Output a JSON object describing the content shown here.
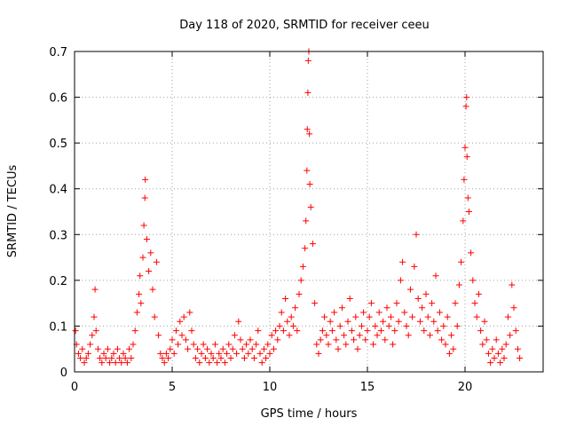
{
  "chart_data": {
    "type": "scatter",
    "title": "Day 118 of 2020, SRMTID for receiver ceeu",
    "xlabel": "GPS time / hours",
    "ylabel": "SRMTID / TECUs",
    "xlim": [
      0,
      24
    ],
    "ylim": [
      0,
      0.7
    ],
    "xticks": [
      0,
      5,
      10,
      15,
      20
    ],
    "yticks": [
      0,
      0.1,
      0.2,
      0.3,
      0.4,
      0.5,
      0.6,
      0.7
    ],
    "grid": true,
    "marker": "+",
    "color": "#ff0000",
    "series": [
      {
        "name": "SRMTID",
        "points": [
          [
            0.05,
            0.09
          ],
          [
            0.1,
            0.06
          ],
          [
            0.2,
            0.04
          ],
          [
            0.3,
            0.03
          ],
          [
            0.4,
            0.05
          ],
          [
            0.5,
            0.02
          ],
          [
            0.6,
            0.03
          ],
          [
            0.7,
            0.04
          ],
          [
            0.8,
            0.06
          ],
          [
            0.9,
            0.08
          ],
          [
            1.0,
            0.12
          ],
          [
            1.05,
            0.18
          ],
          [
            1.1,
            0.09
          ],
          [
            1.2,
            0.05
          ],
          [
            1.3,
            0.03
          ],
          [
            1.4,
            0.02
          ],
          [
            1.5,
            0.04
          ],
          [
            1.6,
            0.03
          ],
          [
            1.7,
            0.05
          ],
          [
            1.8,
            0.02
          ],
          [
            1.9,
            0.03
          ],
          [
            2.0,
            0.04
          ],
          [
            2.1,
            0.02
          ],
          [
            2.2,
            0.05
          ],
          [
            2.3,
            0.03
          ],
          [
            2.4,
            0.02
          ],
          [
            2.5,
            0.04
          ],
          [
            2.6,
            0.03
          ],
          [
            2.7,
            0.02
          ],
          [
            2.8,
            0.05
          ],
          [
            2.9,
            0.03
          ],
          [
            3.0,
            0.06
          ],
          [
            3.1,
            0.09
          ],
          [
            3.2,
            0.13
          ],
          [
            3.3,
            0.17
          ],
          [
            3.35,
            0.21
          ],
          [
            3.4,
            0.15
          ],
          [
            3.5,
            0.25
          ],
          [
            3.55,
            0.32
          ],
          [
            3.6,
            0.38
          ],
          [
            3.62,
            0.42
          ],
          [
            3.7,
            0.29
          ],
          [
            3.8,
            0.22
          ],
          [
            3.9,
            0.26
          ],
          [
            4.0,
            0.18
          ],
          [
            4.1,
            0.12
          ],
          [
            4.2,
            0.24
          ],
          [
            4.3,
            0.08
          ],
          [
            4.4,
            0.04
          ],
          [
            4.5,
            0.03
          ],
          [
            4.6,
            0.02
          ],
          [
            4.7,
            0.04
          ],
          [
            4.8,
            0.03
          ],
          [
            4.9,
            0.05
          ],
          [
            5.0,
            0.07
          ],
          [
            5.1,
            0.04
          ],
          [
            5.2,
            0.09
          ],
          [
            5.3,
            0.06
          ],
          [
            5.4,
            0.11
          ],
          [
            5.5,
            0.08
          ],
          [
            5.6,
            0.12
          ],
          [
            5.7,
            0.07
          ],
          [
            5.8,
            0.05
          ],
          [
            5.9,
            0.13
          ],
          [
            6.0,
            0.09
          ],
          [
            6.1,
            0.06
          ],
          [
            6.2,
            0.03
          ],
          [
            6.3,
            0.05
          ],
          [
            6.4,
            0.02
          ],
          [
            6.5,
            0.04
          ],
          [
            6.6,
            0.06
          ],
          [
            6.7,
            0.03
          ],
          [
            6.8,
            0.05
          ],
          [
            6.9,
            0.02
          ],
          [
            7.0,
            0.04
          ],
          [
            7.1,
            0.03
          ],
          [
            7.2,
            0.06
          ],
          [
            7.3,
            0.02
          ],
          [
            7.4,
            0.04
          ],
          [
            7.5,
            0.03
          ],
          [
            7.6,
            0.05
          ],
          [
            7.7,
            0.02
          ],
          [
            7.8,
            0.04
          ],
          [
            7.9,
            0.06
          ],
          [
            8.0,
            0.03
          ],
          [
            8.1,
            0.05
          ],
          [
            8.2,
            0.08
          ],
          [
            8.3,
            0.04
          ],
          [
            8.4,
            0.11
          ],
          [
            8.5,
            0.07
          ],
          [
            8.6,
            0.05
          ],
          [
            8.7,
            0.03
          ],
          [
            8.8,
            0.06
          ],
          [
            8.9,
            0.04
          ],
          [
            9.0,
            0.07
          ],
          [
            9.1,
            0.05
          ],
          [
            9.2,
            0.03
          ],
          [
            9.3,
            0.06
          ],
          [
            9.4,
            0.09
          ],
          [
            9.5,
            0.04
          ],
          [
            9.6,
            0.02
          ],
          [
            9.7,
            0.05
          ],
          [
            9.8,
            0.03
          ],
          [
            9.9,
            0.06
          ],
          [
            10.0,
            0.04
          ],
          [
            10.1,
            0.08
          ],
          [
            10.2,
            0.05
          ],
          [
            10.3,
            0.09
          ],
          [
            10.4,
            0.07
          ],
          [
            10.5,
            0.1
          ],
          [
            10.6,
            0.13
          ],
          [
            10.7,
            0.09
          ],
          [
            10.8,
            0.16
          ],
          [
            10.9,
            0.11
          ],
          [
            11.0,
            0.08
          ],
          [
            11.1,
            0.12
          ],
          [
            11.2,
            0.1
          ],
          [
            11.3,
            0.14
          ],
          [
            11.4,
            0.09
          ],
          [
            11.5,
            0.17
          ],
          [
            11.6,
            0.2
          ],
          [
            11.7,
            0.23
          ],
          [
            11.8,
            0.27
          ],
          [
            11.85,
            0.33
          ],
          [
            11.9,
            0.44
          ],
          [
            11.92,
            0.53
          ],
          [
            11.95,
            0.61
          ],
          [
            11.97,
            0.68
          ],
          [
            12.0,
            0.7
          ],
          [
            12.03,
            0.52
          ],
          [
            12.05,
            0.41
          ],
          [
            12.1,
            0.36
          ],
          [
            12.2,
            0.28
          ],
          [
            12.3,
            0.15
          ],
          [
            12.4,
            0.06
          ],
          [
            12.5,
            0.04
          ],
          [
            12.6,
            0.07
          ],
          [
            12.7,
            0.09
          ],
          [
            12.8,
            0.12
          ],
          [
            12.9,
            0.08
          ],
          [
            13.0,
            0.06
          ],
          [
            13.1,
            0.11
          ],
          [
            13.2,
            0.09
          ],
          [
            13.3,
            0.13
          ],
          [
            13.4,
            0.07
          ],
          [
            13.5,
            0.05
          ],
          [
            13.6,
            0.1
          ],
          [
            13.7,
            0.14
          ],
          [
            13.8,
            0.08
          ],
          [
            13.9,
            0.06
          ],
          [
            14.0,
            0.11
          ],
          [
            14.1,
            0.16
          ],
          [
            14.2,
            0.09
          ],
          [
            14.3,
            0.07
          ],
          [
            14.4,
            0.12
          ],
          [
            14.5,
            0.05
          ],
          [
            14.6,
            0.08
          ],
          [
            14.7,
            0.1
          ],
          [
            14.8,
            0.13
          ],
          [
            14.9,
            0.07
          ],
          [
            15.0,
            0.09
          ],
          [
            15.1,
            0.12
          ],
          [
            15.2,
            0.15
          ],
          [
            15.3,
            0.06
          ],
          [
            15.4,
            0.1
          ],
          [
            15.5,
            0.08
          ],
          [
            15.6,
            0.13
          ],
          [
            15.7,
            0.09
          ],
          [
            15.8,
            0.11
          ],
          [
            15.9,
            0.07
          ],
          [
            16.0,
            0.14
          ],
          [
            16.1,
            0.1
          ],
          [
            16.2,
            0.12
          ],
          [
            16.3,
            0.06
          ],
          [
            16.4,
            0.09
          ],
          [
            16.5,
            0.15
          ],
          [
            16.6,
            0.11
          ],
          [
            16.7,
            0.2
          ],
          [
            16.8,
            0.24
          ],
          [
            16.9,
            0.13
          ],
          [
            17.0,
            0.1
          ],
          [
            17.1,
            0.08
          ],
          [
            17.2,
            0.18
          ],
          [
            17.3,
            0.12
          ],
          [
            17.4,
            0.23
          ],
          [
            17.5,
            0.3
          ],
          [
            17.6,
            0.16
          ],
          [
            17.7,
            0.11
          ],
          [
            17.8,
            0.14
          ],
          [
            17.9,
            0.09
          ],
          [
            18.0,
            0.17
          ],
          [
            18.1,
            0.12
          ],
          [
            18.2,
            0.08
          ],
          [
            18.3,
            0.15
          ],
          [
            18.4,
            0.11
          ],
          [
            18.5,
            0.21
          ],
          [
            18.6,
            0.09
          ],
          [
            18.7,
            0.13
          ],
          [
            18.8,
            0.07
          ],
          [
            18.9,
            0.1
          ],
          [
            19.0,
            0.06
          ],
          [
            19.1,
            0.12
          ],
          [
            19.2,
            0.04
          ],
          [
            19.3,
            0.08
          ],
          [
            19.4,
            0.05
          ],
          [
            19.5,
            0.15
          ],
          [
            19.6,
            0.1
          ],
          [
            19.7,
            0.19
          ],
          [
            19.8,
            0.24
          ],
          [
            19.9,
            0.33
          ],
          [
            19.95,
            0.42
          ],
          [
            20.0,
            0.49
          ],
          [
            20.05,
            0.58
          ],
          [
            20.08,
            0.6
          ],
          [
            20.1,
            0.47
          ],
          [
            20.15,
            0.38
          ],
          [
            20.2,
            0.35
          ],
          [
            20.3,
            0.26
          ],
          [
            20.4,
            0.2
          ],
          [
            20.5,
            0.15
          ],
          [
            20.6,
            0.12
          ],
          [
            20.7,
            0.17
          ],
          [
            20.8,
            0.09
          ],
          [
            20.9,
            0.06
          ],
          [
            21.0,
            0.11
          ],
          [
            21.1,
            0.07
          ],
          [
            21.2,
            0.04
          ],
          [
            21.3,
            0.02
          ],
          [
            21.4,
            0.05
          ],
          [
            21.5,
            0.03
          ],
          [
            21.6,
            0.07
          ],
          [
            21.7,
            0.04
          ],
          [
            21.8,
            0.02
          ],
          [
            21.9,
            0.05
          ],
          [
            22.0,
            0.03
          ],
          [
            22.1,
            0.06
          ],
          [
            22.2,
            0.12
          ],
          [
            22.3,
            0.08
          ],
          [
            22.4,
            0.19
          ],
          [
            22.5,
            0.14
          ],
          [
            22.6,
            0.09
          ],
          [
            22.7,
            0.05
          ],
          [
            22.8,
            0.03
          ]
        ]
      }
    ]
  }
}
